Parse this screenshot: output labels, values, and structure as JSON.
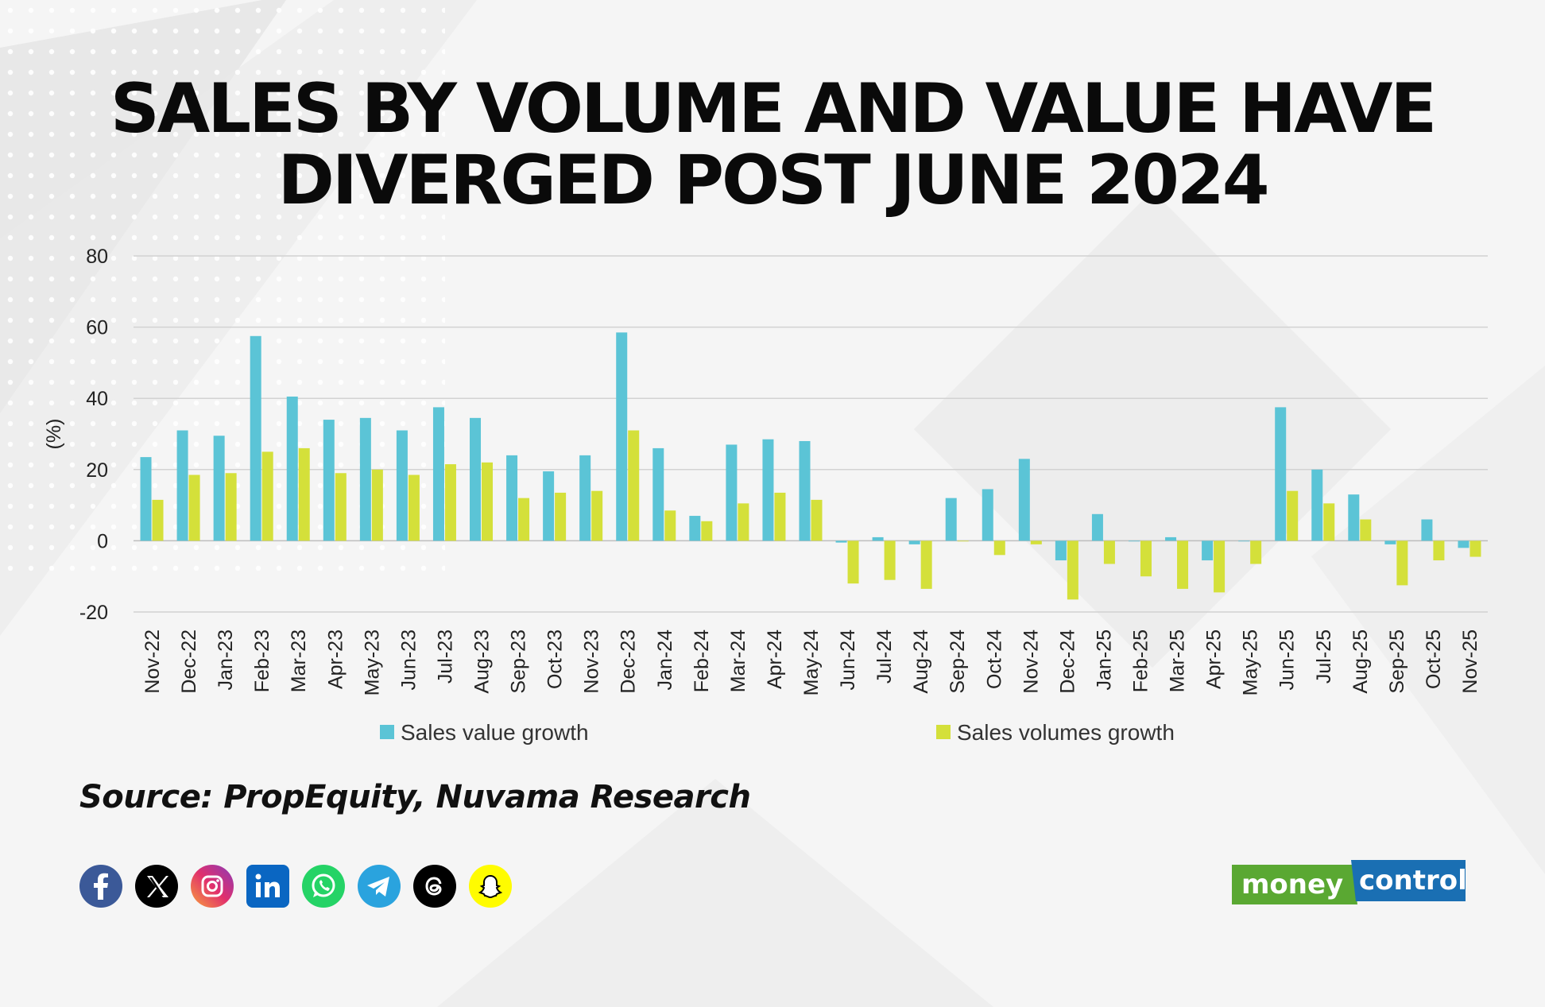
{
  "title_lines": [
    "SALES BY VOLUME AND VALUE HAVE",
    "DIVERGED POST JUNE 2024"
  ],
  "source": "Source: PropEquity, Nuvama Research",
  "brand": {
    "part1": "money",
    "part2": "control"
  },
  "social_icons": [
    "facebook-icon",
    "x-twitter-icon",
    "instagram-icon",
    "linkedin-icon",
    "whatsapp-icon",
    "telegram-icon",
    "threads-icon",
    "snapchat-icon"
  ],
  "colors": {
    "value_series": "#5bc4d6",
    "volume_series": "#d4e03a",
    "brand_green": "#5aa832",
    "brand_blue": "#1a6fb3"
  },
  "chart_data": {
    "type": "bar",
    "ylabel": "(%)",
    "ylim": [
      -20,
      80
    ],
    "yticks": [
      80,
      60,
      40,
      20,
      0,
      -20
    ],
    "grid": true,
    "legend_placement": "bottom",
    "categories": [
      "Nov-22",
      "Dec-22",
      "Jan-23",
      "Feb-23",
      "Mar-23",
      "Apr-23",
      "May-23",
      "Jun-23",
      "Jul-23",
      "Aug-23",
      "Sep-23",
      "Oct-23",
      "Nov-23",
      "Dec-23",
      "Jan-24",
      "Feb-24",
      "Mar-24",
      "Apr-24",
      "May-24",
      "Jun-24",
      "Jul-24",
      "Aug-24",
      "Sep-24",
      "Oct-24",
      "Nov-24",
      "Dec-24",
      "Jan-25",
      "Feb-25",
      "Mar-25",
      "Apr-25",
      "May-25",
      "Jun-25",
      "Jul-25",
      "Aug-25",
      "Sep-25",
      "Oct-25",
      "Nov-25"
    ],
    "series": [
      {
        "name": "Sales value growth",
        "values": [
          23.5,
          31,
          29.5,
          57.5,
          40.5,
          34,
          34.5,
          31,
          37.5,
          34.5,
          24,
          19.5,
          24,
          58.5,
          26,
          7,
          27,
          28.5,
          28,
          -0.5,
          1,
          -1,
          12,
          14.5,
          23,
          -5.5,
          7.5,
          0,
          1,
          -5.5,
          0,
          37.5,
          20,
          13,
          -1,
          6,
          -2
        ]
      },
      {
        "name": "Sales volumes growth",
        "values": [
          11.5,
          18.5,
          19,
          25,
          26,
          19,
          20,
          18.5,
          21.5,
          22,
          12,
          13.5,
          14,
          31,
          8.5,
          5.5,
          10.5,
          13.5,
          11.5,
          -12,
          -11,
          -13.5,
          0,
          -4,
          -1,
          -16.5,
          -6.5,
          -10,
          -13.5,
          -14.5,
          -6.5,
          14,
          10.5,
          6,
          -12.5,
          -5.5,
          -4.5
        ]
      }
    ]
  }
}
